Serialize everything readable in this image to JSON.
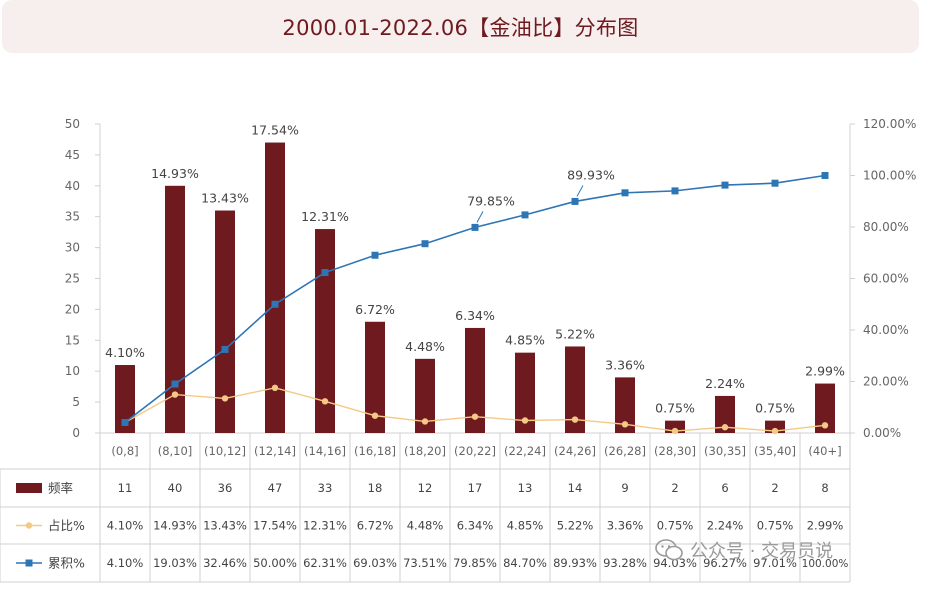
{
  "header": {
    "title": "2000.01-2022.06【金油比】分布图"
  },
  "watermark": {
    "text": "公众号 · 交易员说"
  },
  "chart_data": {
    "type": "bar",
    "title": "2000.01-2022.06【金油比】分布图",
    "categories": [
      "(0,8]",
      "(8,10]",
      "(10,12]",
      "(12,14]",
      "(14,16]",
      "(16,18]",
      "(18,20]",
      "(20,22]",
      "(22,24]",
      "(24,26]",
      "(26,28]",
      "(28,30]",
      "(30,35]",
      "(35,40]",
      "(40+]"
    ],
    "series": [
      {
        "name": "频率",
        "type": "bar",
        "axis": "left",
        "color": "#6e1a1f",
        "values": [
          11,
          40,
          36,
          47,
          33,
          18,
          12,
          17,
          13,
          14,
          9,
          2,
          6,
          2,
          8
        ],
        "display": [
          "11",
          "40",
          "36",
          "47",
          "33",
          "18",
          "12",
          "17",
          "13",
          "14",
          "9",
          "2",
          "6",
          "2",
          "8"
        ]
      },
      {
        "name": "占比%",
        "type": "line",
        "axis": "right",
        "color": "#f5c985",
        "marker": "circle",
        "values": [
          4.1,
          14.93,
          13.43,
          17.54,
          12.31,
          6.72,
          4.48,
          6.34,
          4.85,
          5.22,
          3.36,
          0.75,
          2.24,
          0.75,
          2.99
        ],
        "display": [
          "4.10%",
          "14.93%",
          "13.43%",
          "17.54%",
          "12.31%",
          "6.72%",
          "4.48%",
          "6.34%",
          "4.85%",
          "5.22%",
          "3.36%",
          "0.75%",
          "2.24%",
          "0.75%",
          "2.99%"
        ]
      },
      {
        "name": "累积%",
        "type": "line",
        "axis": "right",
        "color": "#2e75b6",
        "marker": "square",
        "values": [
          4.1,
          19.03,
          32.46,
          50.0,
          62.31,
          69.03,
          73.51,
          79.85,
          84.7,
          89.93,
          93.28,
          94.03,
          96.27,
          97.01,
          100.0
        ],
        "display": [
          "4.10%",
          "19.03%",
          "32.46%",
          "50.00%",
          "62.31%",
          "69.03%",
          "73.51%",
          "79.85%",
          "84.70%",
          "89.93%",
          "93.28%",
          "94.03%",
          "96.27%",
          "97.01%",
          "100.00%"
        ]
      }
    ],
    "bar_labels": [
      "4.10%",
      "14.93%",
      "13.43%",
      "17.54%",
      "12.31%",
      "6.72%",
      "4.48%",
      "6.34%",
      "4.85%",
      "5.22%",
      "3.36%",
      "0.75%",
      "2.24%",
      "0.75%",
      "2.99%"
    ],
    "cum_callouts": [
      {
        "index": 7,
        "label": "79.85%"
      },
      {
        "index": 9,
        "label": "89.93%"
      }
    ],
    "y_left": {
      "min": 0,
      "max": 50,
      "ticks": [
        "0",
        "5",
        "10",
        "15",
        "20",
        "25",
        "30",
        "35",
        "40",
        "45",
        "50"
      ]
    },
    "y_right": {
      "min": 0,
      "max": 120,
      "ticks": [
        "0.00%",
        "20.00%",
        "40.00%",
        "60.00%",
        "80.00%",
        "100.00%",
        "120.00%"
      ]
    },
    "grid": false,
    "legend": "data-table-below"
  }
}
